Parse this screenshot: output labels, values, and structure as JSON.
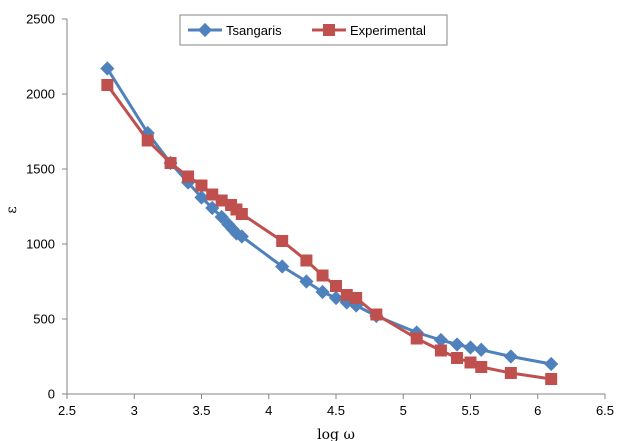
{
  "chart_data": {
    "type": "line",
    "xlabel": "log ω",
    "ylabel": "ε",
    "xlim": [
      2.5,
      6.5
    ],
    "ylim": [
      0,
      2500
    ],
    "x_ticks": [
      "2.5",
      "3",
      "3.5",
      "4",
      "4.5",
      "5",
      "5.5",
      "6",
      "6.5"
    ],
    "y_ticks": [
      "0",
      "500",
      "1000",
      "1500",
      "2000",
      "2500"
    ],
    "grid": false,
    "legend_position": "top-center",
    "series": [
      {
        "name": "Tsangaris",
        "color": "#4f81bd",
        "marker": "diamond",
        "points": [
          [
            2.8,
            2170
          ],
          [
            3.1,
            1740
          ],
          [
            3.27,
            1540
          ],
          [
            3.4,
            1410
          ],
          [
            3.5,
            1310
          ],
          [
            3.58,
            1240
          ],
          [
            3.65,
            1180
          ],
          [
            3.7,
            1130
          ],
          [
            3.73,
            1100
          ],
          [
            3.76,
            1070
          ],
          [
            3.8,
            1050
          ],
          [
            4.1,
            850
          ],
          [
            4.28,
            750
          ],
          [
            4.4,
            680
          ],
          [
            4.5,
            640
          ],
          [
            4.58,
            610
          ],
          [
            4.65,
            590
          ],
          [
            4.8,
            520
          ],
          [
            5.1,
            410
          ],
          [
            5.28,
            360
          ],
          [
            5.4,
            330
          ],
          [
            5.5,
            310
          ],
          [
            5.58,
            295
          ],
          [
            5.8,
            250
          ],
          [
            6.1,
            200
          ]
        ]
      },
      {
        "name": "Experimental",
        "color": "#c0504d",
        "marker": "square",
        "points": [
          [
            2.8,
            2060
          ],
          [
            3.1,
            1690
          ],
          [
            3.27,
            1540
          ],
          [
            3.4,
            1450
          ],
          [
            3.5,
            1390
          ],
          [
            3.58,
            1330
          ],
          [
            3.65,
            1290
          ],
          [
            3.72,
            1260
          ],
          [
            3.76,
            1230
          ],
          [
            3.8,
            1200
          ],
          [
            4.1,
            1020
          ],
          [
            4.28,
            890
          ],
          [
            4.4,
            790
          ],
          [
            4.5,
            720
          ],
          [
            4.58,
            660
          ],
          [
            4.65,
            640
          ],
          [
            4.8,
            530
          ],
          [
            5.1,
            370
          ],
          [
            5.28,
            290
          ],
          [
            5.4,
            240
          ],
          [
            5.5,
            210
          ],
          [
            5.58,
            180
          ],
          [
            5.8,
            140
          ],
          [
            6.1,
            100
          ]
        ]
      }
    ]
  }
}
